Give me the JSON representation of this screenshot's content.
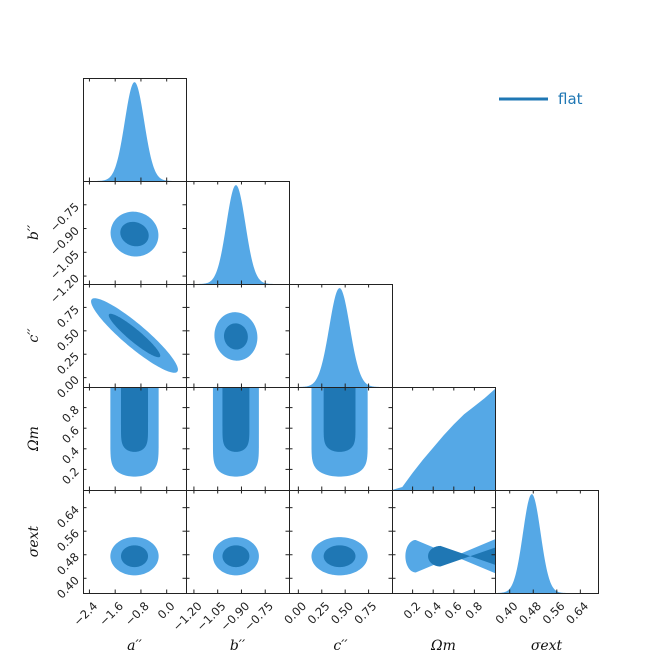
{
  "chart_data": {
    "type": "corner",
    "colors": {
      "outer": "#55a8e6",
      "inner": "#1f77b4",
      "legend": "#1f77b4"
    },
    "legend": {
      "placement": "top-right",
      "entries": [
        {
          "name": "flat"
        }
      ]
    },
    "parameters": [
      {
        "key": "a",
        "label": "a′′",
        "range": [
          -2.6,
          0.6
        ],
        "ticks": [
          -2.4,
          -1.6,
          -0.8,
          0.0
        ],
        "tick_labels": [
          "−2.4",
          "−1.6",
          "−0.8",
          "0.0"
        ]
      },
      {
        "key": "b",
        "label": "b′′",
        "range": [
          -1.25,
          -0.6
        ],
        "ticks": [
          -1.2,
          -1.05,
          -0.9,
          -0.75
        ],
        "tick_labels": [
          "−1.20",
          "−1.05",
          "−0.90",
          "−0.75"
        ]
      },
      {
        "key": "c",
        "label": "c′′",
        "range": [
          -0.1,
          1.0
        ],
        "ticks": [
          0.0,
          0.25,
          0.5,
          0.75
        ],
        "tick_labels": [
          "0.00",
          "0.25",
          "0.50",
          "0.75"
        ]
      },
      {
        "key": "om",
        "label": "Ωm",
        "range": [
          0.0,
          1.0
        ],
        "ticks": [
          0.2,
          0.4,
          0.6,
          0.8
        ],
        "tick_labels": [
          "0.2",
          "0.4",
          "0.6",
          "0.8"
        ]
      },
      {
        "key": "sig",
        "label": "σext",
        "range": [
          0.35,
          0.7
        ],
        "ticks": [
          0.4,
          0.48,
          0.56,
          0.64
        ],
        "tick_labels": [
          "0.40",
          "0.48",
          "0.56",
          "0.64"
        ]
      }
    ],
    "marginals": [
      {
        "param": "a",
        "shape": "gaussian",
        "mean": -1.0,
        "sd": 0.3
      },
      {
        "param": "b",
        "shape": "gaussian",
        "mean": -0.935,
        "sd": 0.06
      },
      {
        "param": "c",
        "shape": "gaussian",
        "mean": 0.44,
        "sd": 0.11
      },
      {
        "param": "om",
        "shape": "rising",
        "points": [
          [
            0.0,
            0.0
          ],
          [
            0.1,
            0.03
          ],
          [
            0.2,
            0.17
          ],
          [
            0.3,
            0.3
          ],
          [
            0.4,
            0.42
          ],
          [
            0.5,
            0.54
          ],
          [
            0.6,
            0.65
          ],
          [
            0.7,
            0.75
          ],
          [
            0.8,
            0.83
          ],
          [
            0.9,
            0.91
          ],
          [
            1.0,
            1.0
          ]
        ]
      },
      {
        "param": "sig",
        "shape": "gaussian",
        "mean": 0.475,
        "sd": 0.03
      }
    ],
    "contours": [
      {
        "x": "a",
        "y": "b",
        "shape": "ellipse",
        "center": [
          -1.0,
          -0.935
        ],
        "outer_semi": [
          0.75,
          0.14
        ],
        "inner_semi": [
          0.45,
          0.075
        ],
        "angle_deg": -20
      },
      {
        "x": "a",
        "y": "c",
        "shape": "ellipse",
        "center": [
          -1.0,
          0.45
        ],
        "outer_semi": [
          1.35,
          0.16
        ],
        "inner_semi": [
          0.8,
          0.085
        ],
        "slope": -0.27
      },
      {
        "x": "b",
        "y": "c",
        "shape": "ellipse",
        "center": [
          -0.935,
          0.44
        ],
        "outer_semi": [
          0.135,
          0.26
        ],
        "inner_semi": [
          0.075,
          0.14
        ],
        "angle_deg": 10
      },
      {
        "x": "a",
        "y": "om",
        "shape": "u",
        "center": -1.0,
        "outer_halfwidth": 0.75,
        "inner_halfwidth": 0.42,
        "outer_bottom": 0.13,
        "inner_bottom": 0.37
      },
      {
        "x": "b",
        "y": "om",
        "shape": "u",
        "center": -0.935,
        "outer_halfwidth": 0.145,
        "inner_halfwidth": 0.085,
        "outer_bottom": 0.13,
        "inner_bottom": 0.37
      },
      {
        "x": "c",
        "y": "om",
        "shape": "u",
        "center": 0.44,
        "outer_halfwidth": 0.3,
        "inner_halfwidth": 0.17,
        "outer_bottom": 0.13,
        "inner_bottom": 0.37
      },
      {
        "x": "a",
        "y": "sig",
        "shape": "ellipse",
        "center": [
          -1.0,
          0.475
        ],
        "outer_semi": [
          0.75,
          0.065
        ],
        "inner_semi": [
          0.42,
          0.037
        ],
        "angle_deg": 0
      },
      {
        "x": "b",
        "y": "sig",
        "shape": "ellipse",
        "center": [
          -0.935,
          0.475
        ],
        "outer_semi": [
          0.145,
          0.065
        ],
        "inner_semi": [
          0.085,
          0.037
        ],
        "angle_deg": 0
      },
      {
        "x": "c",
        "y": "sig",
        "shape": "ellipse",
        "center": [
          0.44,
          0.475
        ],
        "outer_semi": [
          0.3,
          0.065
        ],
        "inner_semi": [
          0.17,
          0.037
        ],
        "angle_deg": 0
      },
      {
        "x": "om",
        "y": "sig",
        "shape": "wedge",
        "apex": [
          0.13,
          0.475
        ],
        "outer_half_height": 0.065,
        "inner_half_height": 0.035,
        "inner_start": 0.35
      }
    ]
  }
}
